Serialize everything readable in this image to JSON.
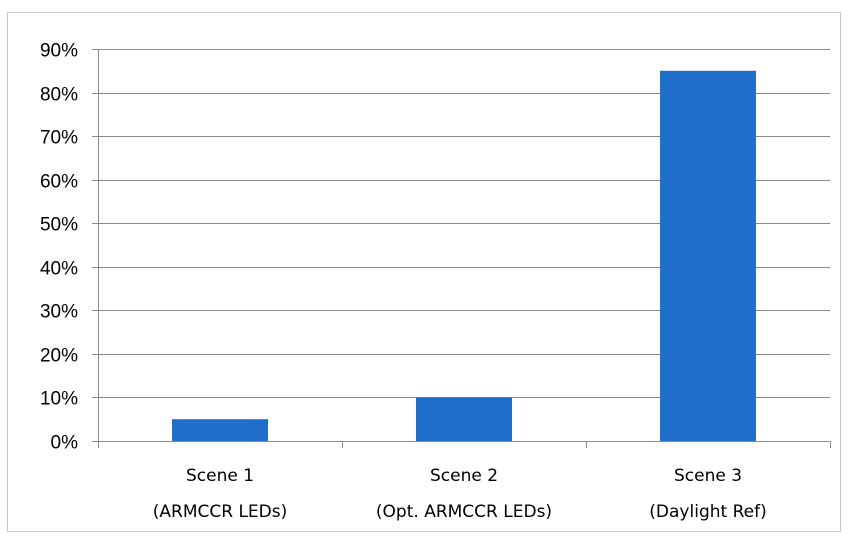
{
  "chart_data": {
    "type": "bar",
    "categories": [
      [
        "Scene 1",
        "(ARMCCR LEDs)"
      ],
      [
        "Scene 2",
        "(Opt. ARMCCR LEDs)"
      ],
      [
        "Scene 3",
        "(Daylight Ref)"
      ]
    ],
    "values": [
      5,
      10,
      85
    ],
    "title": "",
    "xlabel": "",
    "ylabel": "",
    "ylim": [
      0,
      90
    ],
    "yticks": [
      "0%",
      "10%",
      "20%",
      "30%",
      "40%",
      "50%",
      "60%",
      "70%",
      "80%",
      "90%"
    ],
    "grid": true,
    "legend": "none",
    "colors": {
      "bar": "#1f6fca",
      "grid": "#8c8c8c",
      "axis": "#8c8c8c"
    }
  }
}
